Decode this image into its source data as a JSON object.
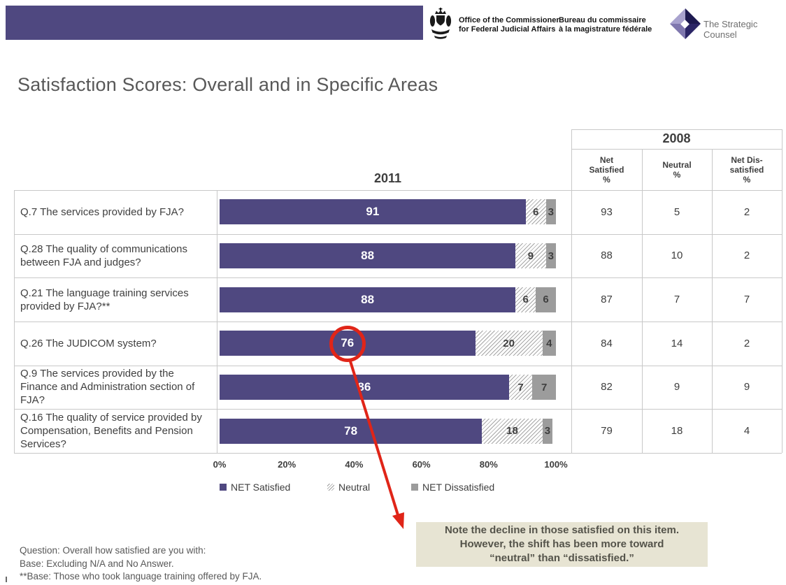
{
  "header": {
    "org_en_line1": "Office of the Commissioner",
    "org_en_line2": "for Federal Judicial Affairs",
    "org_fr_line1": "Bureau du commissaire",
    "org_fr_line2": "à la magistrature fédérale",
    "tsc_label": "The Strategic Counsel"
  },
  "title": "Satisfaction Scores: Overall and in Specific Areas",
  "colors": {
    "header_bar": "#4f4880",
    "net_satisfied": "#4f4880",
    "net_dissatisfied": "#9c9c9c",
    "neutral_hatch_line": "#a6a6a6",
    "grid_border": "#c8c8c8",
    "note_background": "#e7e4d3",
    "annotation_red": "#e02518"
  },
  "chart_data": {
    "type": "bar",
    "orientation": "horizontal",
    "stacked": true,
    "year_label_2011": "2011",
    "year_label_2008": "2008",
    "categories": [
      "Q.7 The services provided by FJA?",
      "Q.28 The quality of communications between FJA and judges?",
      "Q.21 The language training services provided by FJA?**",
      "Q.26 The JUDICOM system?",
      "Q.9 The services provided by the Finance and Administration section of FJA?",
      "Q.16 The quality of service provided by Compensation, Benefits and Pension Services?"
    ],
    "series": [
      {
        "name": "NET Satisfied",
        "color": "#4f4880",
        "values": [
          91,
          88,
          88,
          76,
          86,
          78
        ]
      },
      {
        "name": "Neutral",
        "style": "hatch",
        "values": [
          6,
          9,
          6,
          20,
          7,
          18
        ]
      },
      {
        "name": "NET Dissatisfied",
        "color": "#9c9c9c",
        "values": [
          3,
          3,
          6,
          4,
          7,
          3
        ]
      }
    ],
    "x_ticks": [
      "0%",
      "20%",
      "40%",
      "60%",
      "80%",
      "100%"
    ],
    "xlim": [
      0,
      100
    ],
    "legend": [
      "NET Satisfied",
      "Neutral",
      "NET Dissatisfied"
    ],
    "legend_position": "bottom",
    "grid": false,
    "table_2008": {
      "columns": [
        "Net\nSatisfied\n%",
        "Neutral\n%",
        "Net Dis-\nsatisfied\n%"
      ],
      "rows": [
        [
          93,
          5,
          2
        ],
        [
          88,
          10,
          2
        ],
        [
          87,
          7,
          7
        ],
        [
          84,
          14,
          2
        ],
        [
          82,
          9,
          9
        ],
        [
          79,
          18,
          4
        ]
      ]
    },
    "annotation": {
      "circled_row": "Q.26 The JUDICOM system?",
      "circled_value": 76,
      "note": "Note the decline in those satisfied on this item.\nHowever, the shift has been more toward\n“neutral” than “dissatisfied.”"
    }
  },
  "footnotes": [
    "Question: Overall how satisfied are you with:",
    "Base: Excluding N/A and No Answer.",
    "**Base: Those who took language training offered by FJA."
  ]
}
